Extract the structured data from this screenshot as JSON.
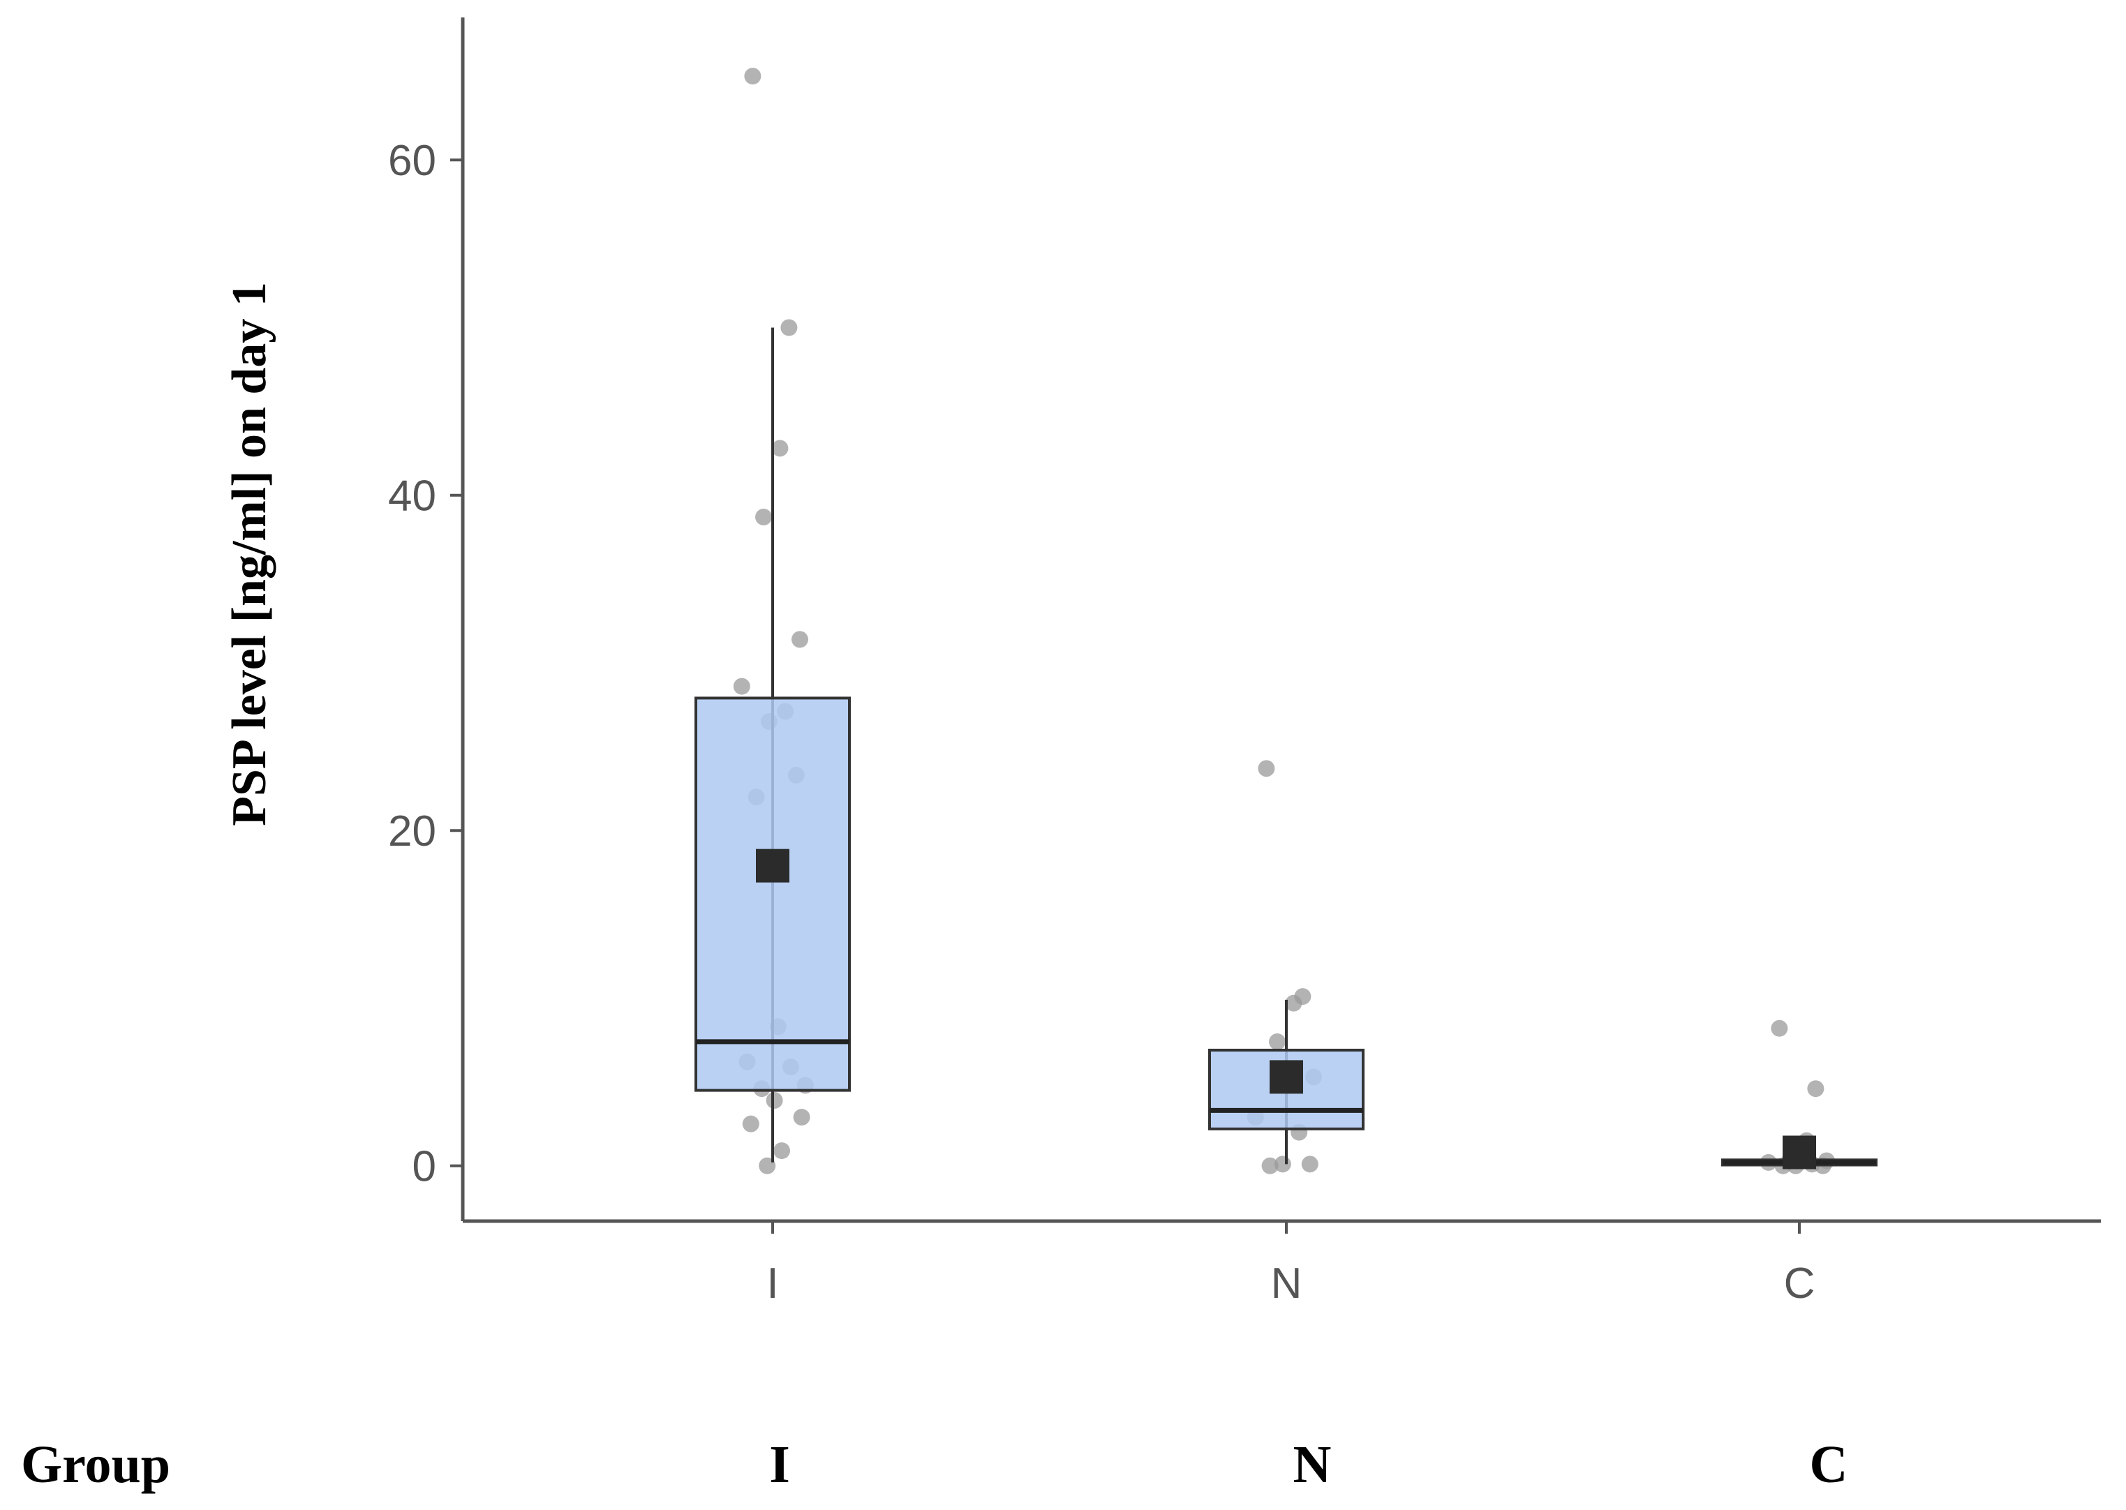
{
  "chart_data": {
    "type": "box",
    "ylabel": "PSP level [ng/ml] on day 1",
    "xlabel": "",
    "categories": [
      "I",
      "N",
      "C"
    ],
    "y_ticks": [
      0,
      20,
      40,
      60
    ],
    "ylim": [
      -3.3,
      68.5
    ],
    "grid": false,
    "legend": "none",
    "box_fill": "#aec9f2",
    "box_stroke": "#333333",
    "point_color": "#999999",
    "mean_marker_color": "#2b2b2b",
    "axis_color": "#555555",
    "boxes": [
      {
        "group": "I",
        "whisker_low": 0.2,
        "q1": 4.5,
        "median": 7.4,
        "q3": 27.9,
        "whisker_high": 50,
        "mean": 17.9,
        "points": [
          65,
          50,
          42.8,
          38.7,
          31.4,
          28.6,
          27.1,
          26.5,
          23.3,
          22,
          8.3,
          6.2,
          5.9,
          4.8,
          4.6,
          3.9,
          2.9,
          2.5,
          0.9,
          0
        ]
      },
      {
        "group": "N",
        "whisker_low": 0.1,
        "q1": 2.2,
        "median": 3.3,
        "q3": 6.9,
        "whisker_high": 9.9,
        "mean": 5.3,
        "points": [
          23.7,
          10.1,
          9.7,
          7.4,
          5.3,
          2.9,
          2,
          0.1,
          0.1,
          0
        ]
      },
      {
        "group": "C",
        "whisker_low": 0,
        "q1": 0.05,
        "median": 0.2,
        "q3": 0.35,
        "whisker_high": 0.5,
        "mean": 0.8,
        "points": [
          8.2,
          4.6,
          1.5,
          0.4,
          0.3,
          0.2,
          0.1,
          0,
          0,
          0
        ]
      }
    ]
  },
  "table": {
    "row_label": "Group",
    "values": [
      "I",
      "N",
      "C"
    ]
  }
}
